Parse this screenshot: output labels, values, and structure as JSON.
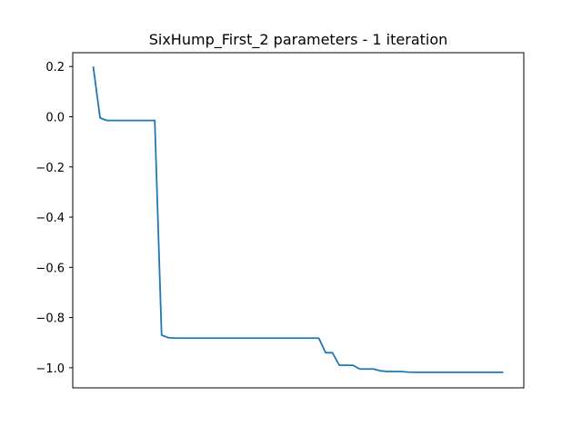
{
  "chart_data": {
    "type": "line",
    "title": "SixHump_First_2 parameters - 1 iteration",
    "xlabel": "",
    "ylabel": "",
    "ylim": [
      -1.08,
      0.255
    ],
    "xlim": [
      -3,
      63
    ],
    "yticks": [
      0.2,
      0.0,
      -0.2,
      -0.4,
      -0.6,
      -0.8,
      -1.0
    ],
    "ytick_labels": [
      "0.2",
      "0.0",
      "−0.2",
      "−0.4",
      "−0.6",
      "−0.8",
      "−1.0"
    ],
    "grid": false,
    "series": [
      {
        "color": "#1f77b4",
        "x": [
          0,
          1,
          2,
          3,
          4,
          5,
          6,
          7,
          8,
          9,
          10,
          11,
          12,
          13,
          14,
          15,
          16,
          17,
          18,
          19,
          20,
          21,
          22,
          23,
          24,
          25,
          26,
          27,
          28,
          29,
          30,
          31,
          32,
          33,
          34,
          35,
          36,
          37,
          38,
          39,
          40,
          41,
          42,
          43,
          44,
          45,
          46,
          47,
          48,
          49,
          50,
          51,
          52,
          53,
          54,
          55,
          56,
          57,
          58,
          59,
          60
        ],
        "y": [
          0.2,
          -0.005,
          -0.015,
          -0.015,
          -0.015,
          -0.015,
          -0.015,
          -0.015,
          -0.015,
          -0.015,
          -0.87,
          -0.88,
          -0.882,
          -0.882,
          -0.882,
          -0.882,
          -0.882,
          -0.882,
          -0.882,
          -0.882,
          -0.882,
          -0.882,
          -0.882,
          -0.882,
          -0.882,
          -0.882,
          -0.882,
          -0.882,
          -0.882,
          -0.882,
          -0.882,
          -0.882,
          -0.882,
          -0.882,
          -0.94,
          -0.94,
          -0.99,
          -0.99,
          -0.99,
          -1.005,
          -1.005,
          -1.005,
          -1.012,
          -1.015,
          -1.015,
          -1.015,
          -1.017,
          -1.018,
          -1.018,
          -1.018,
          -1.018,
          -1.018,
          -1.018,
          -1.018,
          -1.018,
          -1.018,
          -1.018,
          -1.018,
          -1.018,
          -1.018,
          -1.018
        ]
      }
    ]
  }
}
